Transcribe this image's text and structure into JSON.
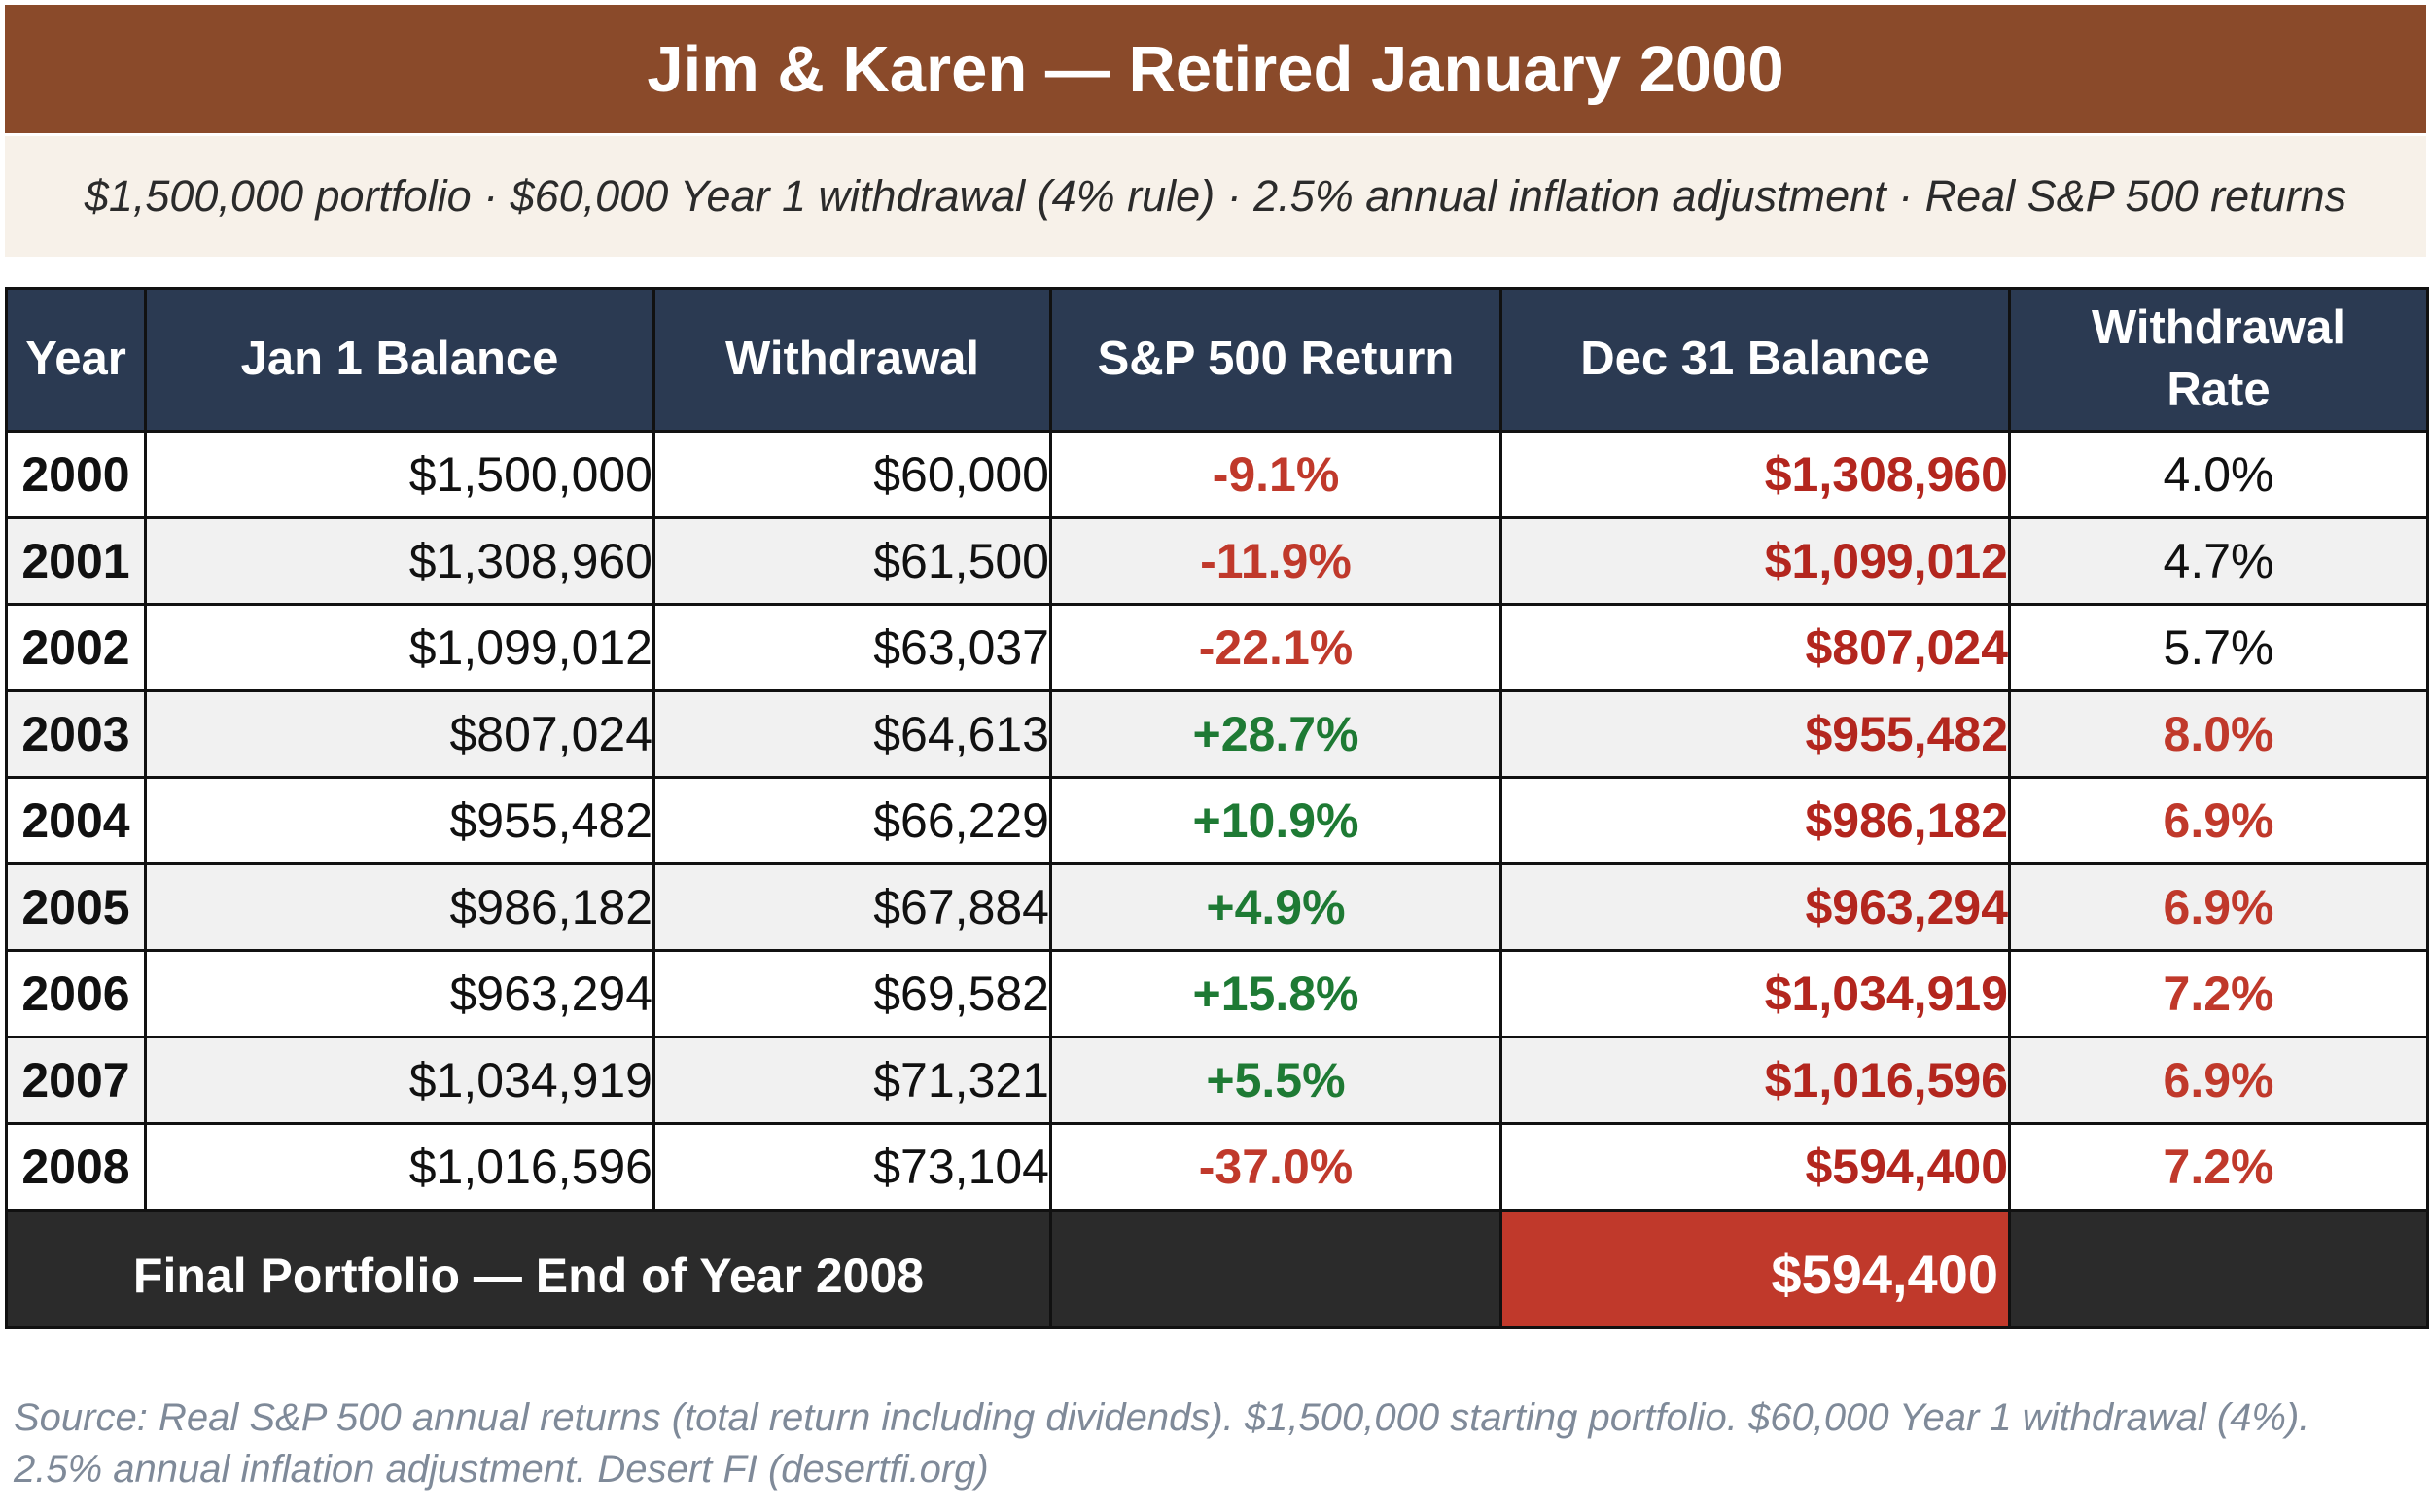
{
  "header": {
    "title": "Jim & Karen — Retired January 2000",
    "subtitle": "$1,500,000 portfolio · $60,000 Year 1 withdrawal (4% rule) · 2.5% annual inflation adjustment · Real S&P 500 returns"
  },
  "table": {
    "columns": {
      "year": "Year",
      "jan_balance": "Jan 1 Balance",
      "withdrawal": "Withdrawal",
      "sp_return": "S&P 500 Return",
      "dec_balance": "Dec 31 Balance",
      "rate_line1": "Withdrawal",
      "rate_line2": "Rate"
    },
    "rows": [
      {
        "year": "2000",
        "jan": "$1,500,000",
        "withdrawal": "$60,000",
        "ret": "-9.1%",
        "dec": "$1,308,960",
        "rate": "4.0%"
      },
      {
        "year": "2001",
        "jan": "$1,308,960",
        "withdrawal": "$61,500",
        "ret": "-11.9%",
        "dec": "$1,099,012",
        "rate": "4.7%"
      },
      {
        "year": "2002",
        "jan": "$1,099,012",
        "withdrawal": "$63,037",
        "ret": "-22.1%",
        "dec": "$807,024",
        "rate": "5.7%"
      },
      {
        "year": "2003",
        "jan": "$807,024",
        "withdrawal": "$64,613",
        "ret": "+28.7%",
        "dec": "$955,482",
        "rate": "8.0%"
      },
      {
        "year": "2004",
        "jan": "$955,482",
        "withdrawal": "$66,229",
        "ret": "+10.9%",
        "dec": "$986,182",
        "rate": "6.9%"
      },
      {
        "year": "2005",
        "jan": "$986,182",
        "withdrawal": "$67,884",
        "ret": "+4.9%",
        "dec": "$963,294",
        "rate": "6.9%"
      },
      {
        "year": "2006",
        "jan": "$963,294",
        "withdrawal": "$69,582",
        "ret": "+15.8%",
        "dec": "$1,034,919",
        "rate": "7.2%"
      },
      {
        "year": "2007",
        "jan": "$1,034,919",
        "withdrawal": "$71,321",
        "ret": "+5.5%",
        "dec": "$1,016,596",
        "rate": "6.9%"
      },
      {
        "year": "2008",
        "jan": "$1,016,596",
        "withdrawal": "$73,104",
        "ret": "-37.0%",
        "dec": "$594,400",
        "rate": "7.2%"
      }
    ],
    "footer": {
      "label": "Final Portfolio — End of Year 2008",
      "value": "$594,400"
    }
  },
  "source": {
    "line1": "Source: Real S&P 500 annual returns (total return including dividends). $1,500,000 starting portfolio. $60,000 Year 1 withdrawal (4%).",
    "line2": "2.5% annual inflation adjustment. Desert FI (desertfi.org)"
  },
  "colors": {
    "title_bg": "#8a4a2a",
    "header_bg": "#2b3a52",
    "negative": "#c0392b",
    "positive": "#1e7a34",
    "footer_bg": "#2b2b2b"
  }
}
